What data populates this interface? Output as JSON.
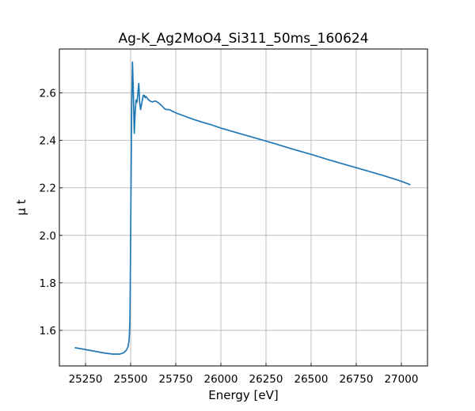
{
  "chart_data": {
    "type": "line",
    "title": "Ag-K_Ag2MoO4_Si311_50ms_160624",
    "xlabel": "Energy [eV]",
    "ylabel": "μ t",
    "xlim": [
      25105,
      27145
    ],
    "ylim": [
      1.45,
      2.785
    ],
    "grid": true,
    "x_ticks": [
      25250,
      25500,
      25750,
      26000,
      26250,
      26500,
      26750,
      27000
    ],
    "y_ticks": [
      1.6,
      1.8,
      2.0,
      2.2,
      2.4,
      2.6
    ],
    "x_tick_labels": [
      "25250",
      "25500",
      "25750",
      "26000",
      "26250",
      "26500",
      "26750",
      "27000"
    ],
    "y_tick_labels": [
      "1.6",
      "1.8",
      "2.0",
      "2.2",
      "2.4",
      "2.6"
    ],
    "series": [
      {
        "color": "#1f77b4",
        "x": [
          25190,
          25250,
          25300,
          25350,
          25400,
          25440,
          25460,
          25475,
          25485,
          25490,
          25493,
          25496,
          25498,
          25500,
          25503,
          25506,
          25510,
          25515,
          25520,
          25525,
          25530,
          25535,
          25540,
          25545,
          25550,
          25555,
          25560,
          25565,
          25570,
          25575,
          25580,
          25585,
          25590,
          25600,
          25610,
          25620,
          25630,
          25640,
          25650,
          25660,
          25670,
          25680,
          25690,
          25700,
          25710,
          25720,
          25730,
          25740,
          25750,
          25800,
          25850,
          25900,
          25950,
          26000,
          26100,
          26200,
          26300,
          26400,
          26500,
          26600,
          26700,
          26800,
          26900,
          27000,
          27050
        ],
        "y": [
          1.527,
          1.519,
          1.512,
          1.505,
          1.5,
          1.5,
          1.505,
          1.515,
          1.53,
          1.55,
          1.58,
          1.65,
          1.8,
          2.0,
          2.3,
          2.55,
          2.73,
          2.6,
          2.43,
          2.52,
          2.57,
          2.56,
          2.6,
          2.64,
          2.56,
          2.53,
          2.55,
          2.57,
          2.59,
          2.59,
          2.58,
          2.585,
          2.58,
          2.57,
          2.565,
          2.562,
          2.565,
          2.565,
          2.56,
          2.555,
          2.548,
          2.54,
          2.532,
          2.53,
          2.53,
          2.528,
          2.523,
          2.52,
          2.516,
          2.502,
          2.488,
          2.476,
          2.465,
          2.452,
          2.43,
          2.408,
          2.386,
          2.363,
          2.341,
          2.318,
          2.296,
          2.274,
          2.252,
          2.228,
          2.213
        ]
      }
    ]
  }
}
